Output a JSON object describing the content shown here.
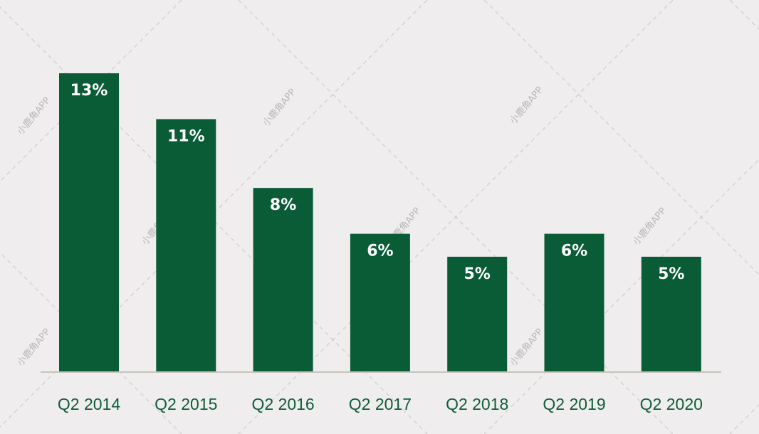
{
  "chart_data": {
    "type": "bar",
    "categories": [
      "Q2 2014",
      "Q2 2015",
      "Q2 2016",
      "Q2 2017",
      "Q2 2018",
      "Q2 2019",
      "Q2 2020"
    ],
    "values": [
      13,
      11,
      8,
      6,
      5,
      6,
      5
    ],
    "value_labels": [
      "13%",
      "11%",
      "8%",
      "6%",
      "5%",
      "6%",
      "5%"
    ],
    "title": "",
    "xlabel": "",
    "ylabel": "",
    "ylim": [
      0,
      13
    ],
    "grid": false,
    "legend": "none",
    "colors": {
      "bar": "#0a5c37",
      "axis": "#c8c3bd",
      "tick_text": "#0f5d38",
      "background": "#efedee"
    }
  },
  "watermark": {
    "text": "小鹿角APP"
  }
}
